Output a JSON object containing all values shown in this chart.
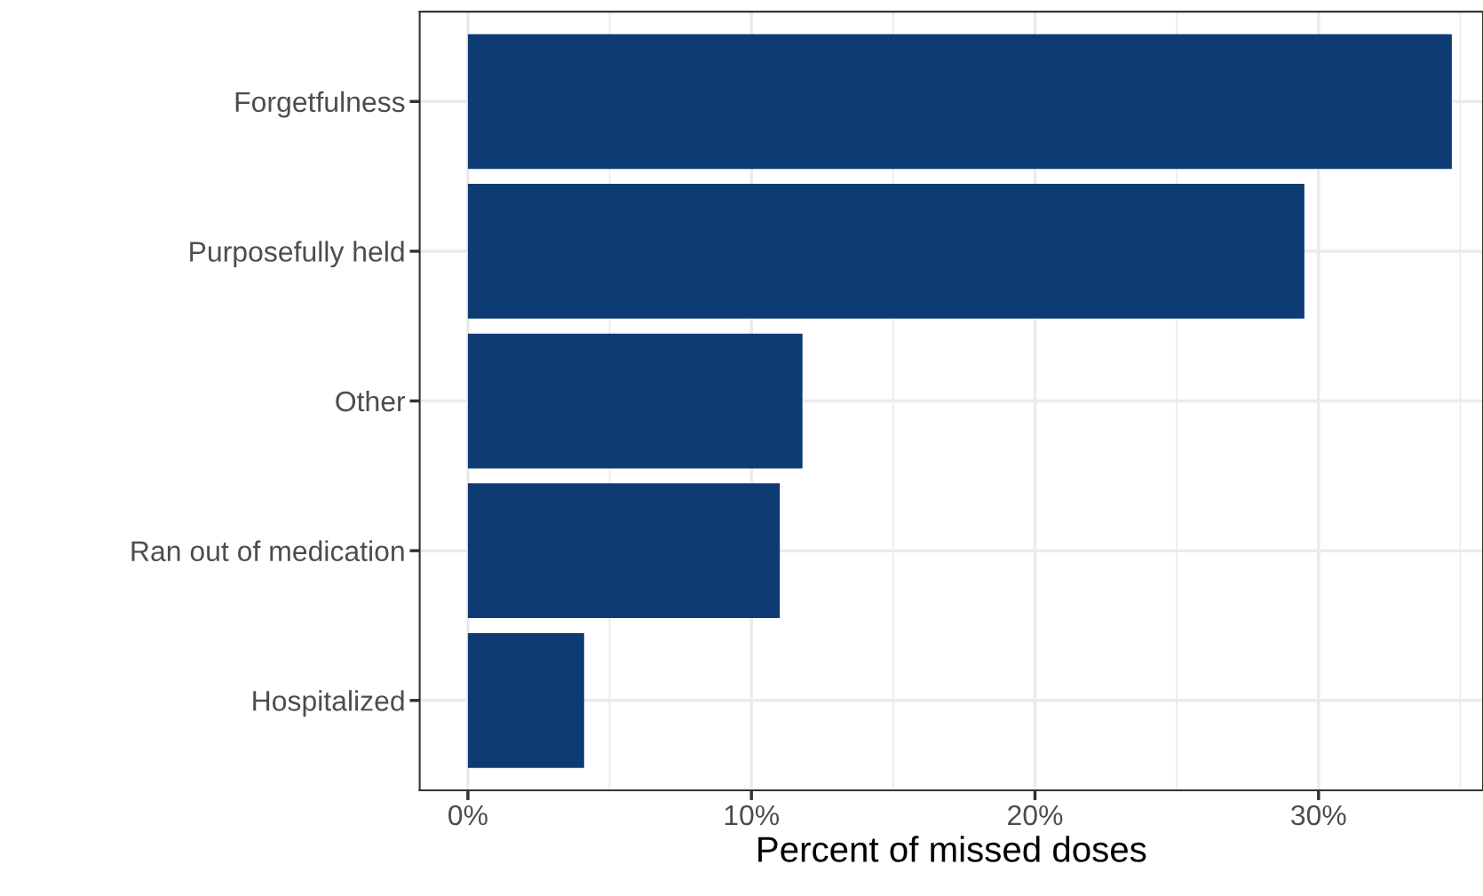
{
  "chart_data": {
    "type": "bar",
    "orientation": "horizontal",
    "xlabel": "Percent of missed doses",
    "categories": [
      "Forgetfulness",
      "Purposefully held",
      "Other",
      "Ran out of medication",
      "Hospitalized"
    ],
    "values": [
      34.7,
      29.5,
      11.8,
      11.0,
      4.1
    ],
    "color": "#0d3b73",
    "xlim": [
      -1.7,
      35.8
    ],
    "xticks": [
      {
        "value": 0,
        "label": "0%"
      },
      {
        "value": 5,
        "label": null
      },
      {
        "value": 10,
        "label": "10%"
      },
      {
        "value": 15,
        "label": null
      },
      {
        "value": 20,
        "label": "20%"
      },
      {
        "value": 25,
        "label": null
      },
      {
        "value": 30,
        "label": "30%"
      },
      {
        "value": 35,
        "label": null
      }
    ],
    "grid": true
  }
}
